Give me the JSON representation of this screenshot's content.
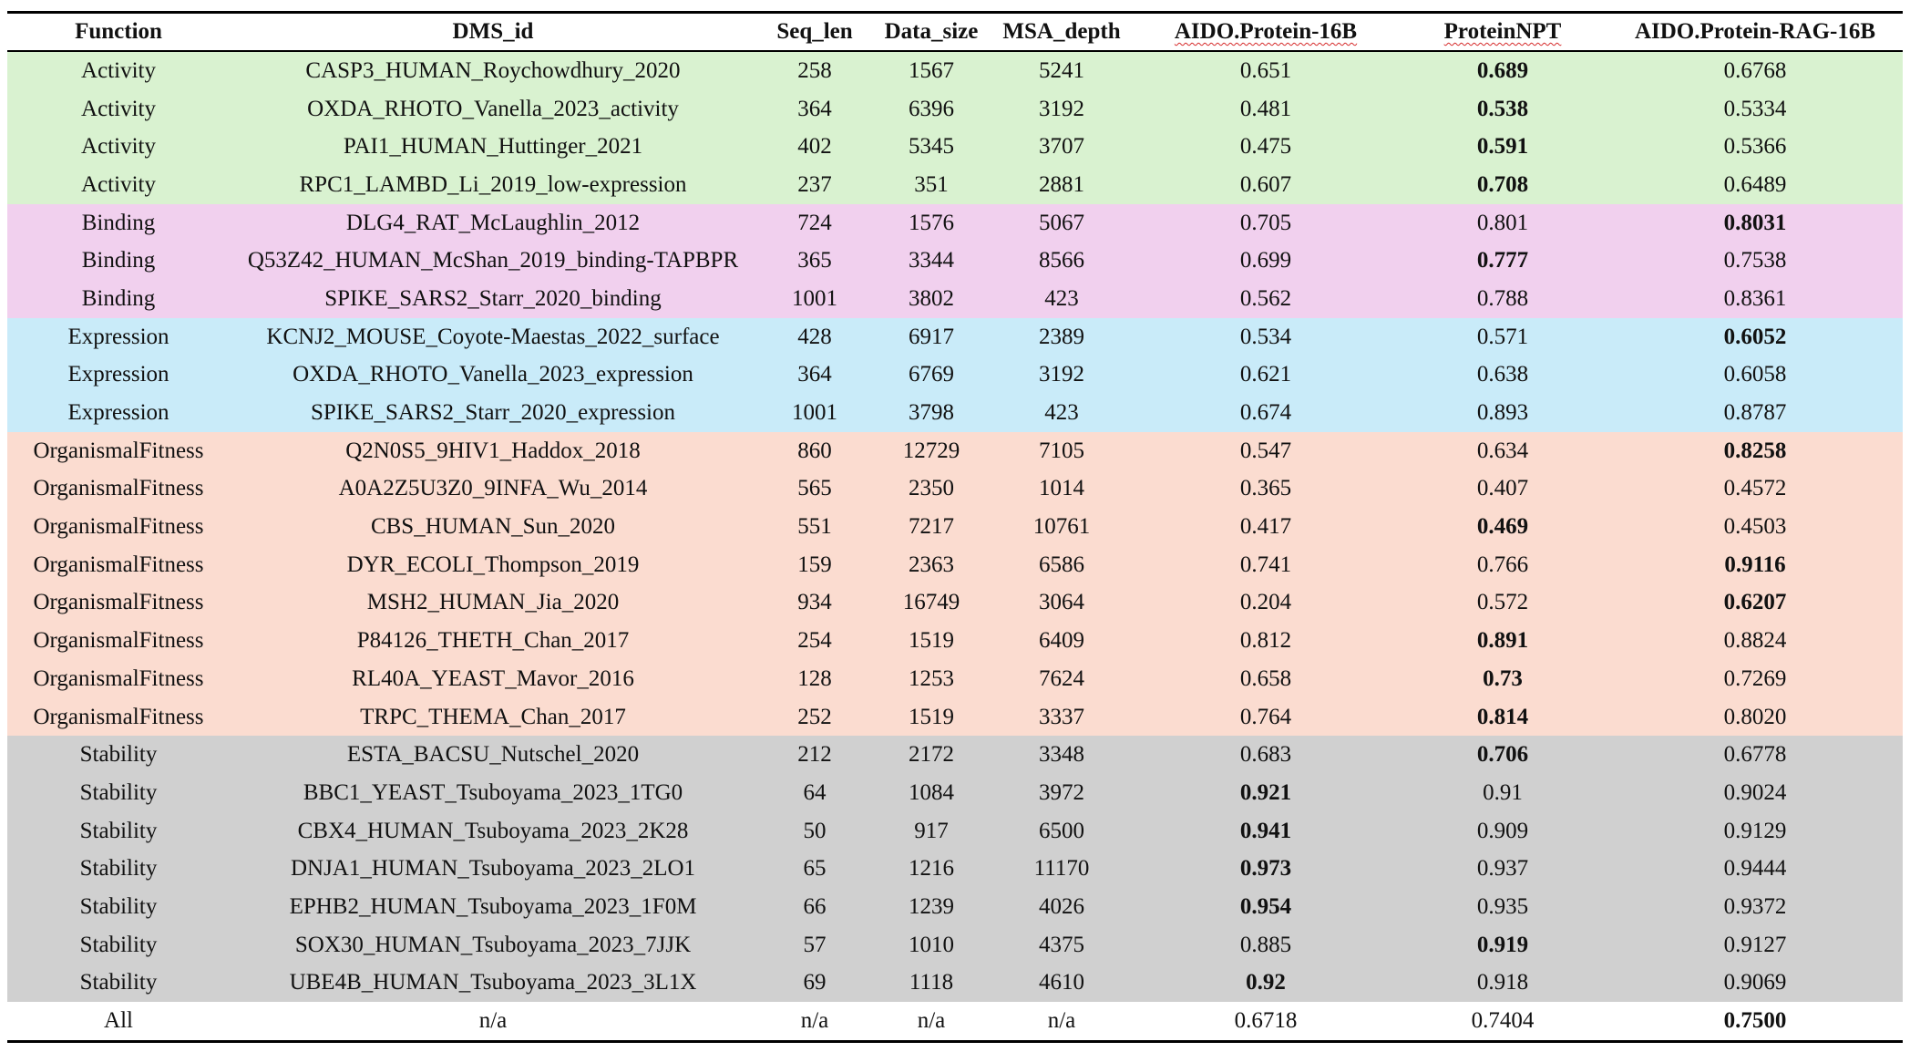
{
  "headers": {
    "function": "Function",
    "dms_id": "DMS_id",
    "seq_len": "Seq_len",
    "data_size": "Data_size",
    "msa_depth": "MSA_depth",
    "aido": "AIDO.Protein-16B",
    "npt": "ProteinNPT",
    "rag": "AIDO.Protein-RAG-16B"
  },
  "group_colors": {
    "Activity": "#d9f2d0",
    "Binding": "#f1d0ee",
    "Expression": "#c9ebf9",
    "OrganismalFitness": "#fbdcd0",
    "Stability": "#d0d0d0",
    "All": "#ffffff"
  },
  "rows": [
    {
      "group": "Activity",
      "function": "Activity",
      "dms_id": "CASP3_HUMAN_Roychowdhury_2020",
      "seq_len": "258",
      "data_size": "1567",
      "msa_depth": "5241",
      "aido": "0.651",
      "npt": "0.689",
      "rag": "0.6768",
      "bold": "npt"
    },
    {
      "group": "Activity",
      "function": "Activity",
      "dms_id": "OXDA_RHOTO_Vanella_2023_activity",
      "seq_len": "364",
      "data_size": "6396",
      "msa_depth": "3192",
      "aido": "0.481",
      "npt": "0.538",
      "rag": "0.5334",
      "bold": "npt"
    },
    {
      "group": "Activity",
      "function": "Activity",
      "dms_id": "PAI1_HUMAN_Huttinger_2021",
      "seq_len": "402",
      "data_size": "5345",
      "msa_depth": "3707",
      "aido": "0.475",
      "npt": "0.591",
      "rag": "0.5366",
      "bold": "npt"
    },
    {
      "group": "Activity",
      "function": "Activity",
      "dms_id": "RPC1_LAMBD_Li_2019_low-expression",
      "seq_len": "237",
      "data_size": "351",
      "msa_depth": "2881",
      "aido": "0.607",
      "npt": "0.708",
      "rag": "0.6489",
      "bold": "npt"
    },
    {
      "group": "Binding",
      "function": "Binding",
      "dms_id": "DLG4_RAT_McLaughlin_2012",
      "seq_len": "724",
      "data_size": "1576",
      "msa_depth": "5067",
      "aido": "0.705",
      "npt": "0.801",
      "rag": "0.8031",
      "bold": "rag"
    },
    {
      "group": "Binding",
      "function": "Binding",
      "dms_id": "Q53Z42_HUMAN_McShan_2019_binding-TAPBPR",
      "seq_len": "365",
      "data_size": "3344",
      "msa_depth": "8566",
      "aido": "0.699",
      "npt": "0.777",
      "rag": "0.7538",
      "bold": "npt"
    },
    {
      "group": "Binding",
      "function": "Binding",
      "dms_id": "SPIKE_SARS2_Starr_2020_binding",
      "seq_len": "1001",
      "data_size": "3802",
      "msa_depth": "423",
      "aido": "0.562",
      "npt": "0.788",
      "rag": "0.8361",
      "bold": ""
    },
    {
      "group": "Expression",
      "function": "Expression",
      "dms_id": "KCNJ2_MOUSE_Coyote-Maestas_2022_surface",
      "seq_len": "428",
      "data_size": "6917",
      "msa_depth": "2389",
      "aido": "0.534",
      "npt": "0.571",
      "rag": "0.6052",
      "bold": "rag"
    },
    {
      "group": "Expression",
      "function": "Expression",
      "dms_id": "OXDA_RHOTO_Vanella_2023_expression",
      "seq_len": "364",
      "data_size": "6769",
      "msa_depth": "3192",
      "aido": "0.621",
      "npt": "0.638",
      "rag": "0.6058",
      "bold": ""
    },
    {
      "group": "Expression",
      "function": "Expression",
      "dms_id": "SPIKE_SARS2_Starr_2020_expression",
      "seq_len": "1001",
      "data_size": "3798",
      "msa_depth": "423",
      "aido": "0.674",
      "npt": "0.893",
      "rag": "0.8787",
      "bold": ""
    },
    {
      "group": "OrganismalFitness",
      "function": "OrganismalFitness",
      "dms_id": "Q2N0S5_9HIV1_Haddox_2018",
      "seq_len": "860",
      "data_size": "12729",
      "msa_depth": "7105",
      "aido": "0.547",
      "npt": "0.634",
      "rag": "0.8258",
      "bold": "rag"
    },
    {
      "group": "OrganismalFitness",
      "function": "OrganismalFitness",
      "dms_id": "A0A2Z5U3Z0_9INFA_Wu_2014",
      "seq_len": "565",
      "data_size": "2350",
      "msa_depth": "1014",
      "aido": "0.365",
      "npt": "0.407",
      "rag": "0.4572",
      "bold": ""
    },
    {
      "group": "OrganismalFitness",
      "function": "OrganismalFitness",
      "dms_id": "CBS_HUMAN_Sun_2020",
      "seq_len": "551",
      "data_size": "7217",
      "msa_depth": "10761",
      "aido": "0.417",
      "npt": "0.469",
      "rag": "0.4503",
      "bold": "npt"
    },
    {
      "group": "OrganismalFitness",
      "function": "OrganismalFitness",
      "dms_id": "DYR_ECOLI_Thompson_2019",
      "seq_len": "159",
      "data_size": "2363",
      "msa_depth": "6586",
      "aido": "0.741",
      "npt": "0.766",
      "rag": "0.9116",
      "bold": "rag"
    },
    {
      "group": "OrganismalFitness",
      "function": "OrganismalFitness",
      "dms_id": "MSH2_HUMAN_Jia_2020",
      "seq_len": "934",
      "data_size": "16749",
      "msa_depth": "3064",
      "aido": "0.204",
      "npt": "0.572",
      "rag": "0.6207",
      "bold": "rag"
    },
    {
      "group": "OrganismalFitness",
      "function": "OrganismalFitness",
      "dms_id": "P84126_THETH_Chan_2017",
      "seq_len": "254",
      "data_size": "1519",
      "msa_depth": "6409",
      "aido": "0.812",
      "npt": "0.891",
      "rag": "0.8824",
      "bold": "npt"
    },
    {
      "group": "OrganismalFitness",
      "function": "OrganismalFitness",
      "dms_id": "RL40A_YEAST_Mavor_2016",
      "seq_len": "128",
      "data_size": "1253",
      "msa_depth": "7624",
      "aido": "0.658",
      "npt": "0.73",
      "rag": "0.7269",
      "bold": "npt"
    },
    {
      "group": "OrganismalFitness",
      "function": "OrganismalFitness",
      "dms_id": "TRPC_THEMA_Chan_2017",
      "seq_len": "252",
      "data_size": "1519",
      "msa_depth": "3337",
      "aido": "0.764",
      "npt": "0.814",
      "rag": "0.8020",
      "bold": "npt"
    },
    {
      "group": "Stability",
      "function": "Stability",
      "dms_id": "ESTA_BACSU_Nutschel_2020",
      "seq_len": "212",
      "data_size": "2172",
      "msa_depth": "3348",
      "aido": "0.683",
      "npt": "0.706",
      "rag": "0.6778",
      "bold": "npt"
    },
    {
      "group": "Stability",
      "function": "Stability",
      "dms_id": "BBC1_YEAST_Tsuboyama_2023_1TG0",
      "seq_len": "64",
      "data_size": "1084",
      "msa_depth": "3972",
      "aido": "0.921",
      "npt": "0.91",
      "rag": "0.9024",
      "bold": "aido"
    },
    {
      "group": "Stability",
      "function": "Stability",
      "dms_id": "CBX4_HUMAN_Tsuboyama_2023_2K28",
      "seq_len": "50",
      "data_size": "917",
      "msa_depth": "6500",
      "aido": "0.941",
      "npt": "0.909",
      "rag": "0.9129",
      "bold": "aido"
    },
    {
      "group": "Stability",
      "function": "Stability",
      "dms_id": "DNJA1_HUMAN_Tsuboyama_2023_2LO1",
      "seq_len": "65",
      "data_size": "1216",
      "msa_depth": "11170",
      "aido": "0.973",
      "npt": "0.937",
      "rag": "0.9444",
      "bold": "aido"
    },
    {
      "group": "Stability",
      "function": "Stability",
      "dms_id": "EPHB2_HUMAN_Tsuboyama_2023_1F0M",
      "seq_len": "66",
      "data_size": "1239",
      "msa_depth": "4026",
      "aido": "0.954",
      "npt": "0.935",
      "rag": "0.9372",
      "bold": "aido"
    },
    {
      "group": "Stability",
      "function": "Stability",
      "dms_id": "SOX30_HUMAN_Tsuboyama_2023_7JJK",
      "seq_len": "57",
      "data_size": "1010",
      "msa_depth": "4375",
      "aido": "0.885",
      "npt": "0.919",
      "rag": "0.9127",
      "bold": "npt"
    },
    {
      "group": "Stability",
      "function": "Stability",
      "dms_id": "UBE4B_HUMAN_Tsuboyama_2023_3L1X",
      "seq_len": "69",
      "data_size": "1118",
      "msa_depth": "4610",
      "aido": "0.92",
      "npt": "0.918",
      "rag": "0.9069",
      "bold": "aido"
    },
    {
      "group": "All",
      "function": "All",
      "dms_id": "n/a",
      "seq_len": "n/a",
      "data_size": "n/a",
      "msa_depth": "n/a",
      "aido": "0.6718",
      "npt": "0.7404",
      "rag": "0.7500",
      "bold": "rag"
    }
  ]
}
